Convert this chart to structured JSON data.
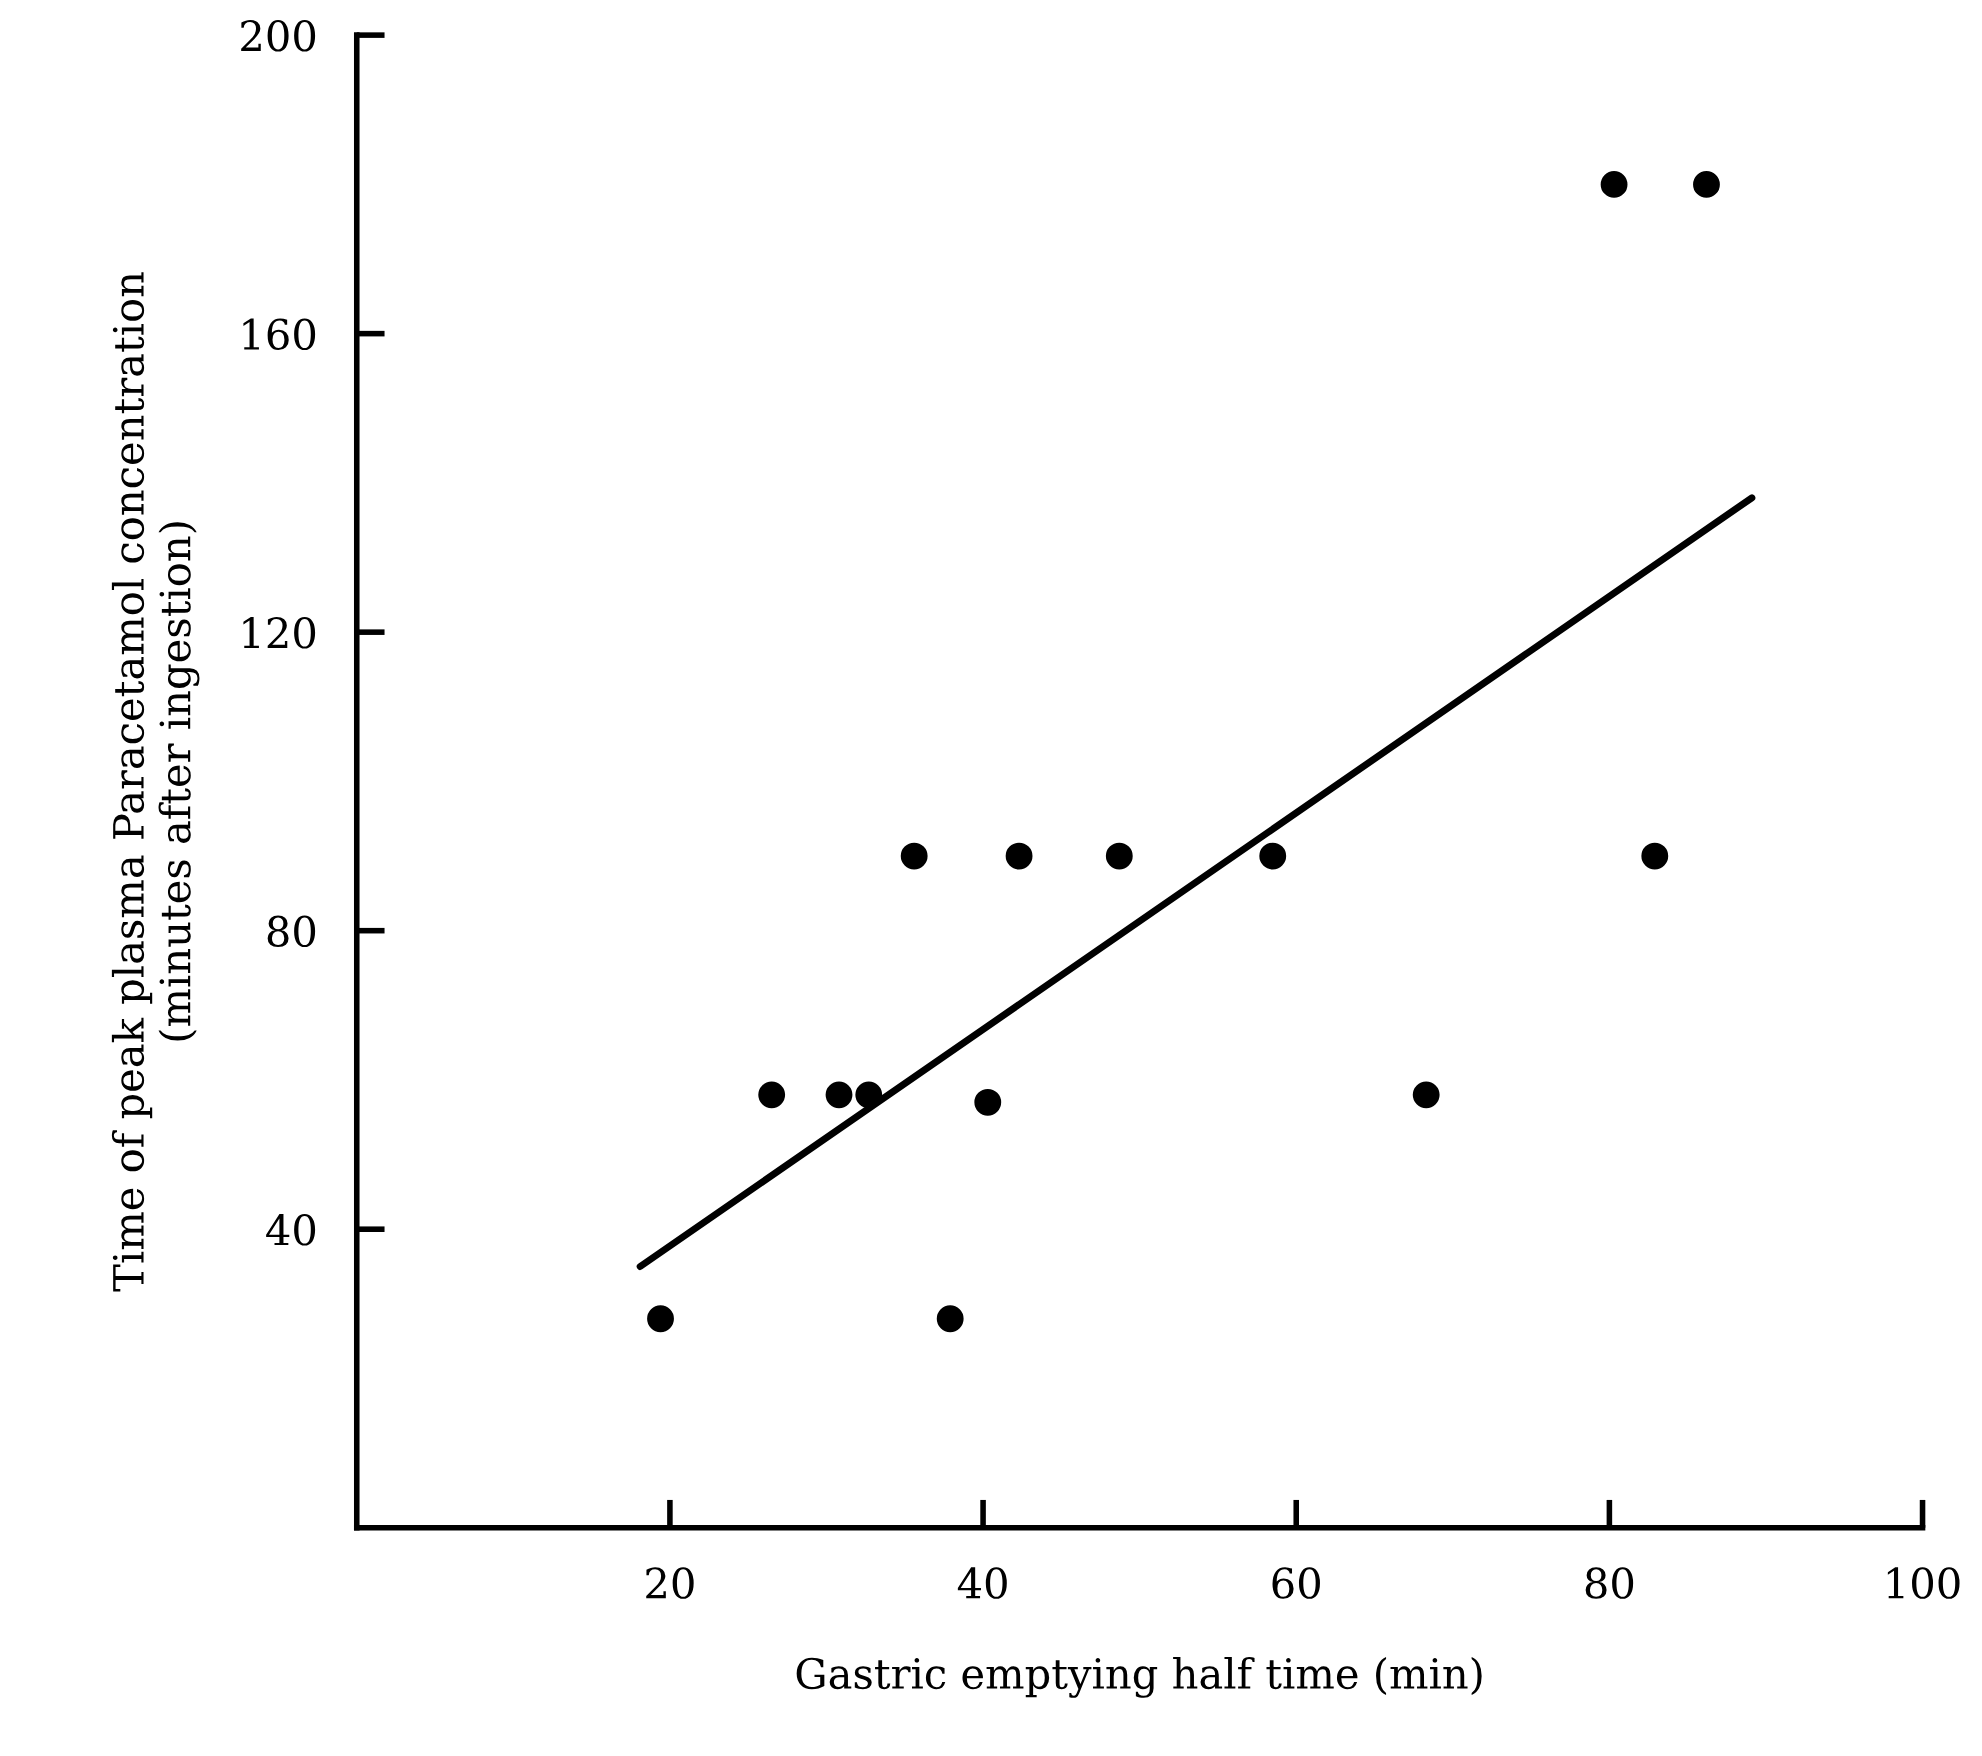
{
  "chart_data": {
    "type": "scatter",
    "xlabel": "Gastric emptying half time (min)",
    "ylabel": "Time of peak plasma Paracetamol concentration\n(minutes after ingestion)",
    "series": [
      {
        "color": "#000000",
        "marker": "circle",
        "x": [
          19.4,
          26.5,
          30.8,
          32.7,
          35.6,
          37.9,
          40.3,
          42.3,
          48.7,
          58.5,
          68.3,
          80.3,
          82.9,
          86.2
        ],
        "values": [
          28,
          58,
          58,
          58,
          90,
          28,
          57,
          90,
          90,
          90,
          58,
          180,
          90,
          180
        ]
      },
      {
        "type": "line",
        "color": "#000000",
        "marker": "none",
        "line_style": "solid",
        "x": [
          18.1,
          89.1
        ],
        "values": [
          35,
          138
        ]
      }
    ],
    "xlim": [
      0,
      100
    ],
    "ylim": [
      0,
      200
    ],
    "xticks": [
      20,
      40,
      60,
      80,
      100
    ],
    "yticks": [
      40,
      80,
      120,
      160,
      200
    ],
    "grid": false,
    "legend": false
  }
}
